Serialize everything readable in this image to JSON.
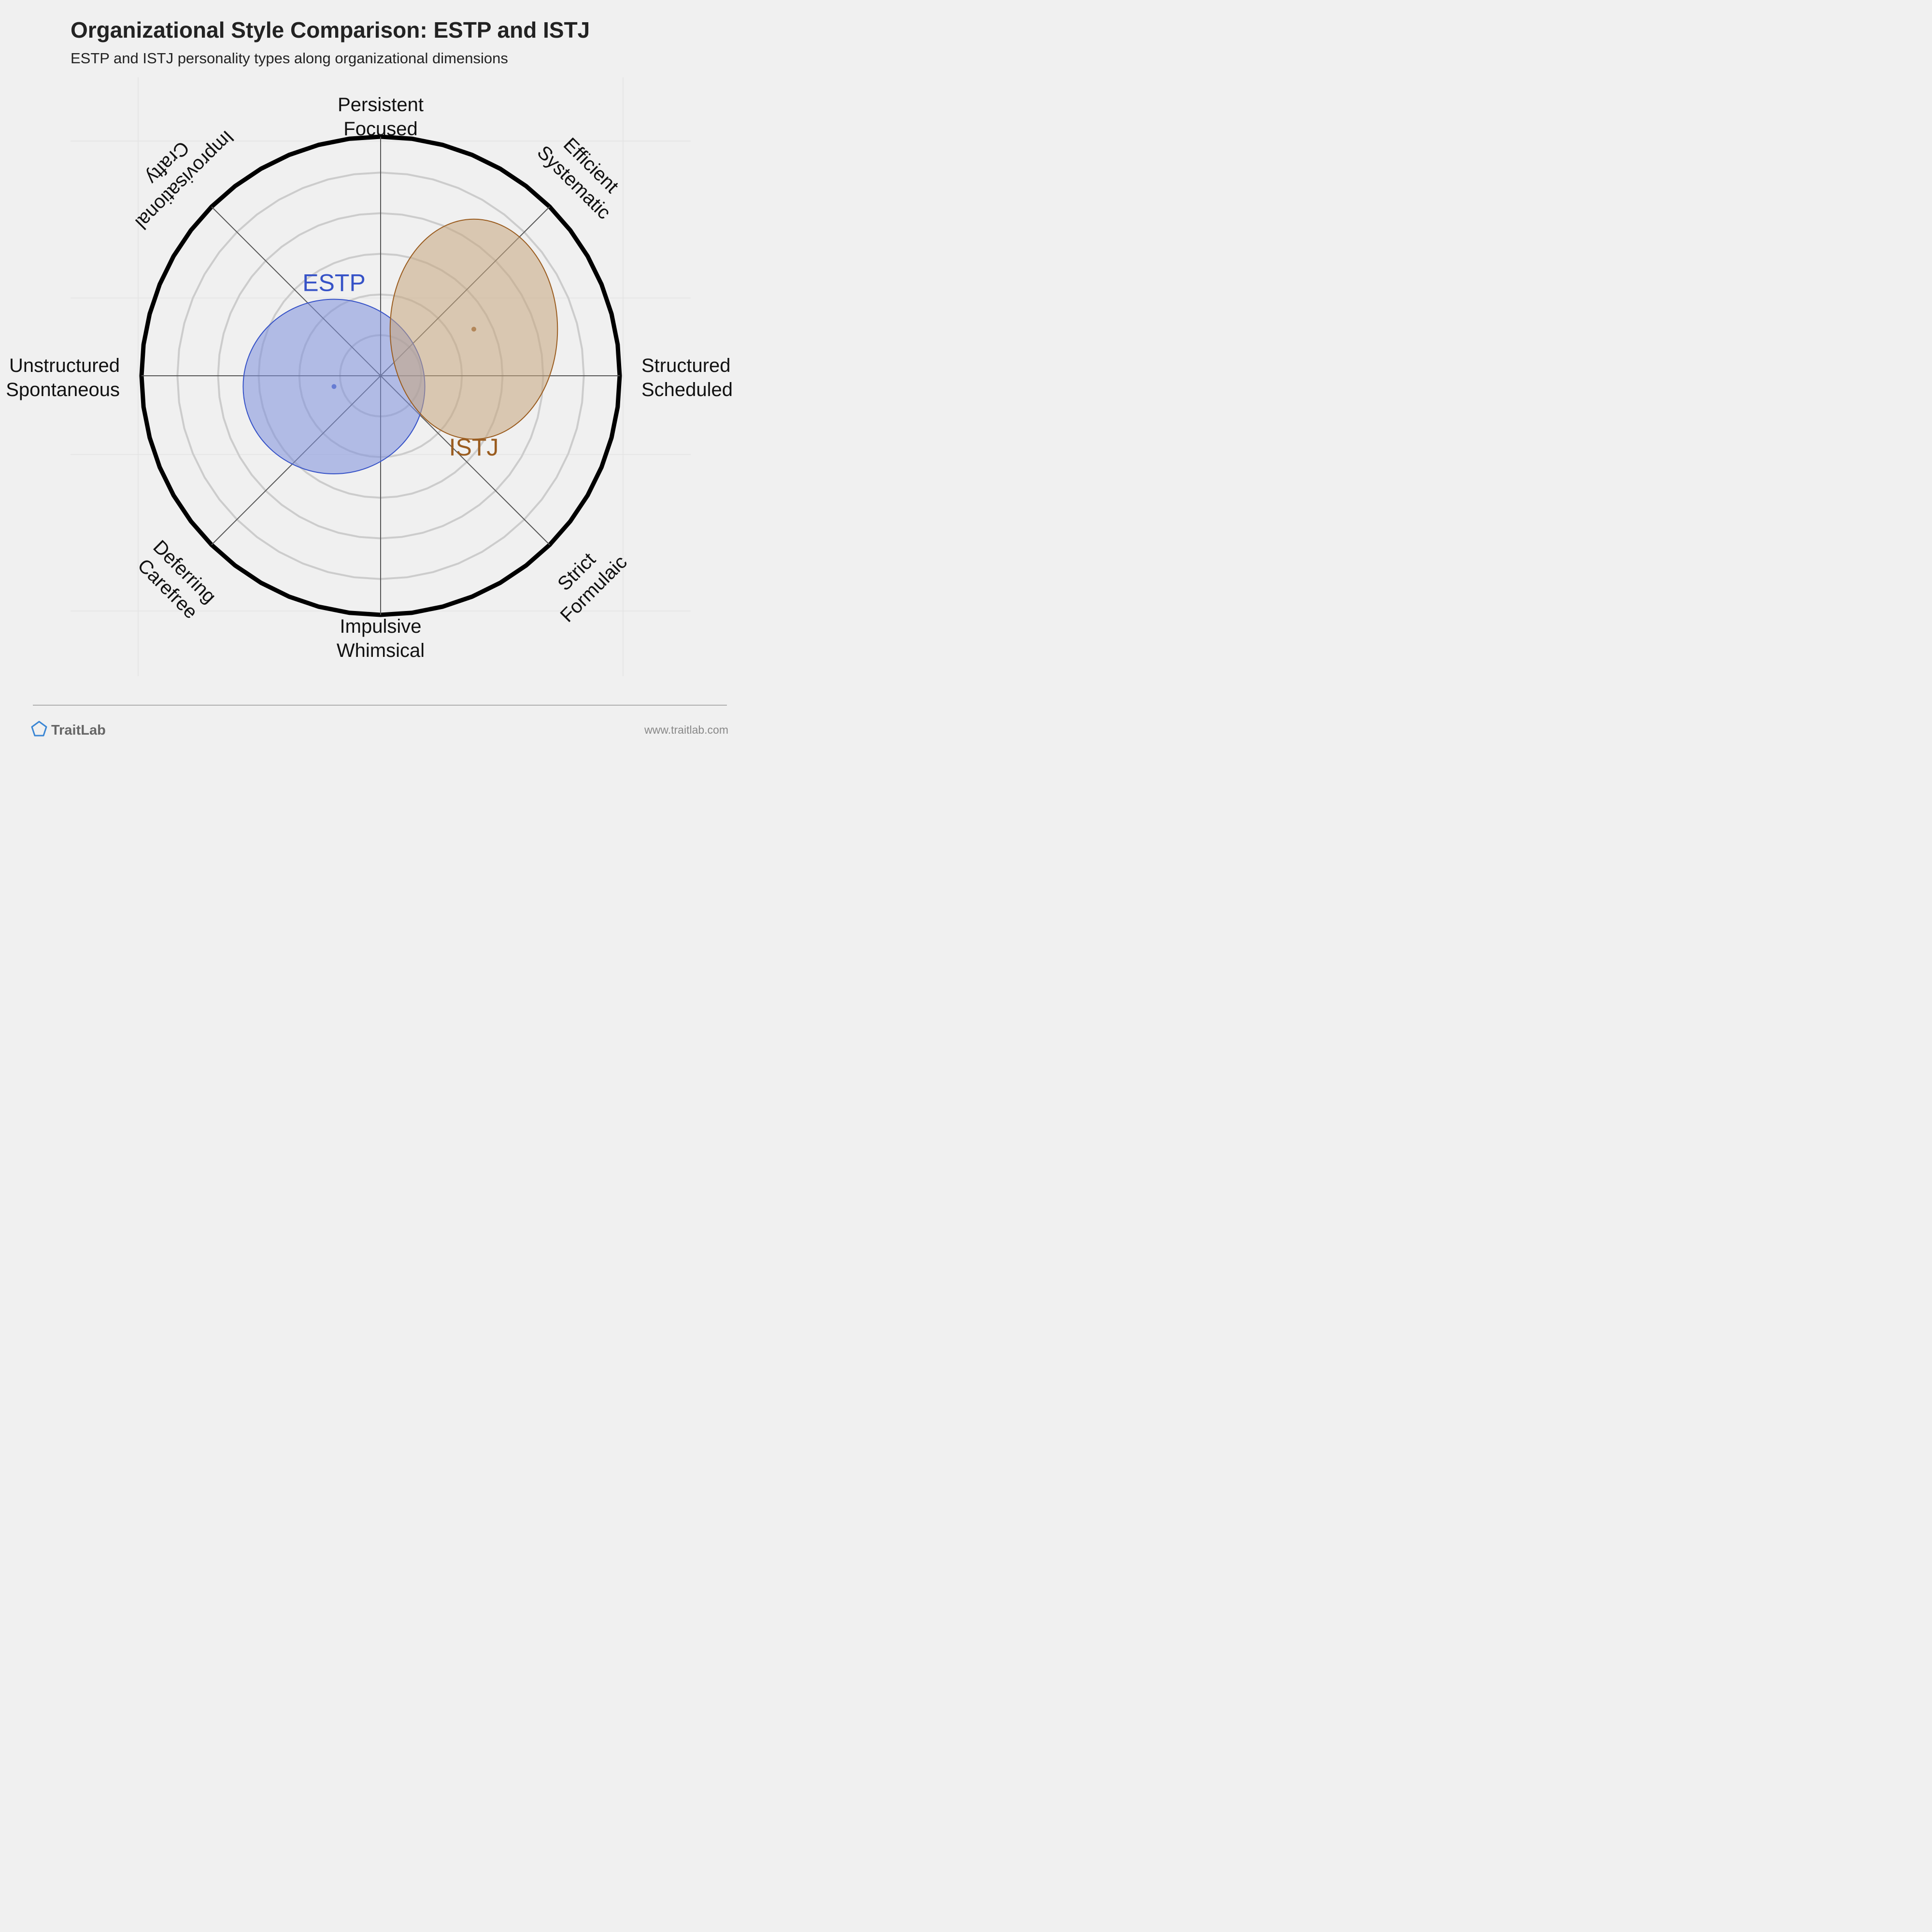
{
  "header": {
    "title": "Organizational Style Comparison: ESTP and ISTJ",
    "subtitle": "ESTP and ISTJ personality types along organizational dimensions"
  },
  "chart_data": {
    "type": "scatter",
    "title": "Organizational Style Comparison: ESTP and ISTJ",
    "subtitle": "ESTP and ISTJ personality types along organizational dimensions",
    "grid": true,
    "axes": [
      {
        "id": "persistent",
        "lines": [
          "Persistent",
          "Focused"
        ]
      },
      {
        "id": "efficient",
        "lines": [
          "Efficient",
          "Systematic"
        ]
      },
      {
        "id": "structured",
        "lines": [
          "Structured",
          "Scheduled"
        ]
      },
      {
        "id": "strict",
        "lines": [
          "Strict",
          "Formulaic"
        ]
      },
      {
        "id": "impulsive",
        "lines": [
          "Impulsive",
          "Whimsical"
        ]
      },
      {
        "id": "deferring",
        "lines": [
          "Deferring",
          "Carefree"
        ]
      },
      {
        "id": "unstructured",
        "lines": [
          "Unstructured",
          "Spontaneous"
        ]
      },
      {
        "id": "improvisational",
        "lines": [
          "Improvisational",
          "Crafty"
        ]
      }
    ],
    "x_range": [
      -1,
      1
    ],
    "y_range": [
      -1,
      1
    ],
    "series": [
      {
        "name": "ESTP",
        "x": -0.195,
        "y": -0.045,
        "spread_x": 0.38,
        "spread_y": 0.365,
        "color": "#3652c7",
        "fill": "#7e90dc"
      },
      {
        "name": "ISTJ",
        "x": 0.39,
        "y": 0.195,
        "spread_x": 0.35,
        "spread_y": 0.46,
        "color": "#9a5c1f",
        "fill": "#c7a57e"
      }
    ]
  },
  "footer": {
    "brand": "TraitLab",
    "url": "www.traitlab.com"
  },
  "colors": {
    "background": "#f0f0f0",
    "outer_ring": "#000000",
    "inner_rings": "#cccccc",
    "axis_lines": "#555555",
    "brand_icon": "#3a86d4"
  },
  "icons": {
    "brand": "pentagon-logo-icon"
  }
}
